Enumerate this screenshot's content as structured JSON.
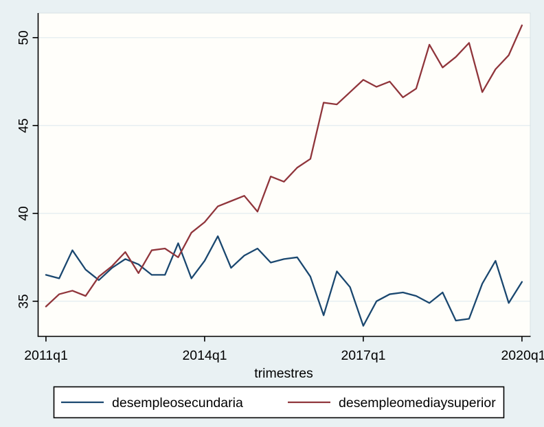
{
  "chart_data": {
    "type": "line",
    "title": "",
    "xlabel": "trimestres",
    "x_axis": {
      "unit": "quarter",
      "start": "2011q1",
      "end": "2020q1",
      "n_points": 37,
      "tick_labels": [
        "2011q1",
        "2014q1",
        "2017q1",
        "2020q1"
      ],
      "tick_indices": [
        0,
        12,
        24,
        36
      ]
    },
    "y_axis": {
      "ticks": [
        35,
        40,
        45,
        50
      ],
      "tick_labels": [
        "35",
        "40",
        "45",
        "50"
      ],
      "range": [
        33.0,
        51.4
      ]
    },
    "grid": "horizontal",
    "legend": {
      "position": "bottom-box"
    },
    "series": [
      {
        "name": "desempleosecundaria",
        "color": "#1a476f",
        "values": [
          36.5,
          36.3,
          37.9,
          36.8,
          36.2,
          36.9,
          37.4,
          37.1,
          36.5,
          36.5,
          38.3,
          36.3,
          37.3,
          38.7,
          36.9,
          37.6,
          38.0,
          37.2,
          37.4,
          37.5,
          36.4,
          34.2,
          36.7,
          35.8,
          33.6,
          35.0,
          35.4,
          35.5,
          35.3,
          34.9,
          35.5,
          33.9,
          34.0,
          36.0,
          37.3,
          34.9,
          36.1
        ]
      },
      {
        "name": "desempleomediaysuperior",
        "color": "#90353b",
        "values": [
          34.7,
          35.4,
          35.6,
          35.3,
          36.4,
          37.0,
          37.8,
          36.6,
          37.9,
          38.0,
          37.5,
          38.9,
          39.5,
          40.4,
          40.7,
          41.0,
          40.1,
          42.1,
          41.8,
          42.6,
          43.1,
          46.3,
          46.2,
          46.9,
          47.6,
          47.2,
          47.5,
          46.6,
          47.1,
          49.6,
          48.3,
          48.9,
          49.7,
          46.9,
          48.2,
          49.0,
          50.7
        ]
      }
    ],
    "colors": {
      "background": "#e9f1f3",
      "plot_background": "#fffefa",
      "gridline": "#e4edf0",
      "axis": "#000000",
      "legend_background": "#ffffff",
      "legend_border": "#000000"
    }
  }
}
